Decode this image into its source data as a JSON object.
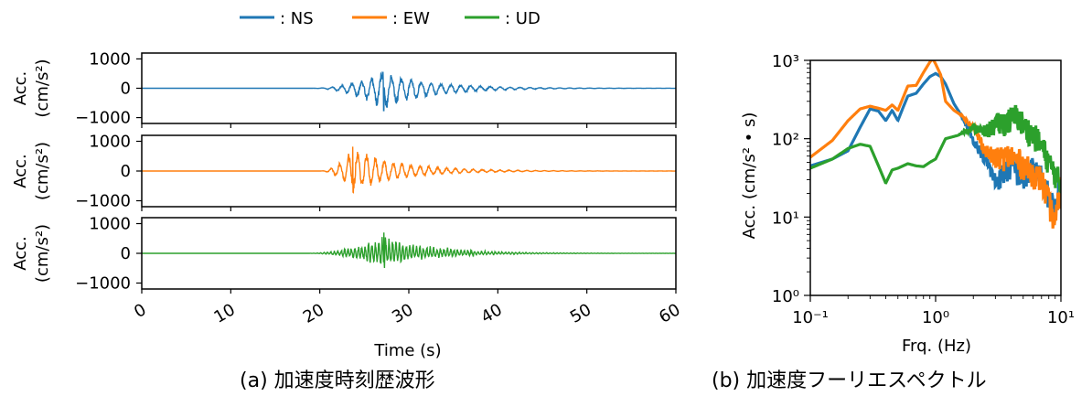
{
  "colors": {
    "NS": "#1f77b4",
    "EW": "#ff7f0e",
    "UD": "#2ca02c",
    "axis": "#000000"
  },
  "legend": {
    "placement": "top",
    "entries": [
      ": NS",
      ": EW",
      ": UD"
    ]
  },
  "captions": {
    "a": "(a) 加速度時刻歴波形",
    "b": "(b) 加速度フーリエスペクトル"
  },
  "chart_data": [
    {
      "type": "line",
      "id": "time-history",
      "xlabel": "Time (s)",
      "xlim": [
        0,
        60
      ],
      "xticks": [
        "0",
        "10",
        "20",
        "30",
        "40",
        "50",
        "60"
      ],
      "panels": [
        {
          "component": "NS",
          "ylabel_line1": "Acc.",
          "ylabel_line2": "(cm/s²)",
          "ylim": [
            -1200,
            1200
          ],
          "yticks": [
            "1000",
            "0",
            "−1000"
          ],
          "onset": 19.0,
          "peak_time": 27.1,
          "peak_pos": 560,
          "peak_neg": -760
        },
        {
          "component": "EW",
          "ylabel_line1": "Acc.",
          "ylabel_line2": "(cm/s²)",
          "ylim": [
            -1200,
            1200
          ],
          "yticks": [
            "1000",
            "0",
            "−1000"
          ],
          "onset": 20.0,
          "peak_time": 23.7,
          "peak_pos": 820,
          "peak_neg": -720
        },
        {
          "component": "UD",
          "ylabel_line1": "Acc.",
          "ylabel_line2": "(cm/s²)",
          "ylim": [
            -1200,
            1200
          ],
          "yticks": [
            "1000",
            "0",
            "−1000"
          ],
          "onset": 18.5,
          "peak_time": 27.2,
          "peak_pos": 700,
          "peak_neg": -490
        }
      ]
    },
    {
      "type": "line",
      "id": "fourier-spectrum",
      "xscale": "log",
      "yscale": "log",
      "xlabel": "Frq. (Hz)",
      "ylabel": "Acc. (cm/s² • s)",
      "xlim": [
        0.1,
        10
      ],
      "ylim": [
        1,
        1000
      ],
      "xticks": [
        "10⁻¹",
        "10⁰",
        "10¹"
      ],
      "yticks": [
        "10⁰",
        "10¹",
        "10²",
        "10³"
      ],
      "series": [
        {
          "name": "NS",
          "x": [
            0.1,
            0.15,
            0.2,
            0.25,
            0.3,
            0.35,
            0.4,
            0.45,
            0.5,
            0.55,
            0.6,
            0.7,
            0.8,
            0.9,
            1.0,
            1.1,
            1.2,
            1.4,
            1.6,
            2.0,
            2.5,
            3.0,
            4.0,
            5.0,
            6.0,
            7.0,
            8.0,
            9.0,
            10.0
          ],
          "y": [
            45,
            55,
            70,
            140,
            240,
            225,
            170,
            230,
            170,
            250,
            350,
            380,
            500,
            620,
            680,
            620,
            500,
            280,
            200,
            95,
            55,
            28,
            45,
            30,
            40,
            30,
            18,
            12,
            30
          ]
        },
        {
          "name": "EW",
          "x": [
            0.1,
            0.15,
            0.2,
            0.25,
            0.3,
            0.35,
            0.4,
            0.45,
            0.5,
            0.6,
            0.7,
            0.8,
            0.9,
            0.95,
            1.0,
            1.1,
            1.2,
            1.4,
            1.6,
            2.0,
            2.5,
            3.0,
            4.0,
            5.0,
            6.0,
            7.0,
            8.0,
            9.0,
            10.0
          ],
          "y": [
            58,
            95,
            170,
            240,
            260,
            245,
            230,
            270,
            230,
            470,
            480,
            700,
            950,
            1050,
            900,
            650,
            300,
            230,
            200,
            140,
            70,
            55,
            60,
            45,
            35,
            30,
            15,
            8,
            25
          ]
        },
        {
          "name": "UD",
          "x": [
            0.1,
            0.15,
            0.2,
            0.25,
            0.3,
            0.35,
            0.4,
            0.45,
            0.5,
            0.6,
            0.7,
            0.8,
            0.9,
            1.0,
            1.2,
            1.5,
            2.0,
            2.5,
            3.0,
            3.5,
            4.0,
            4.5,
            5.0,
            6.0,
            7.0,
            8.0,
            9.0,
            10.0
          ],
          "y": [
            42,
            55,
            75,
            85,
            80,
            45,
            27,
            40,
            42,
            48,
            45,
            44,
            50,
            55,
            100,
            110,
            140,
            120,
            150,
            160,
            170,
            190,
            145,
            110,
            80,
            50,
            35,
            25
          ]
        }
      ]
    }
  ]
}
